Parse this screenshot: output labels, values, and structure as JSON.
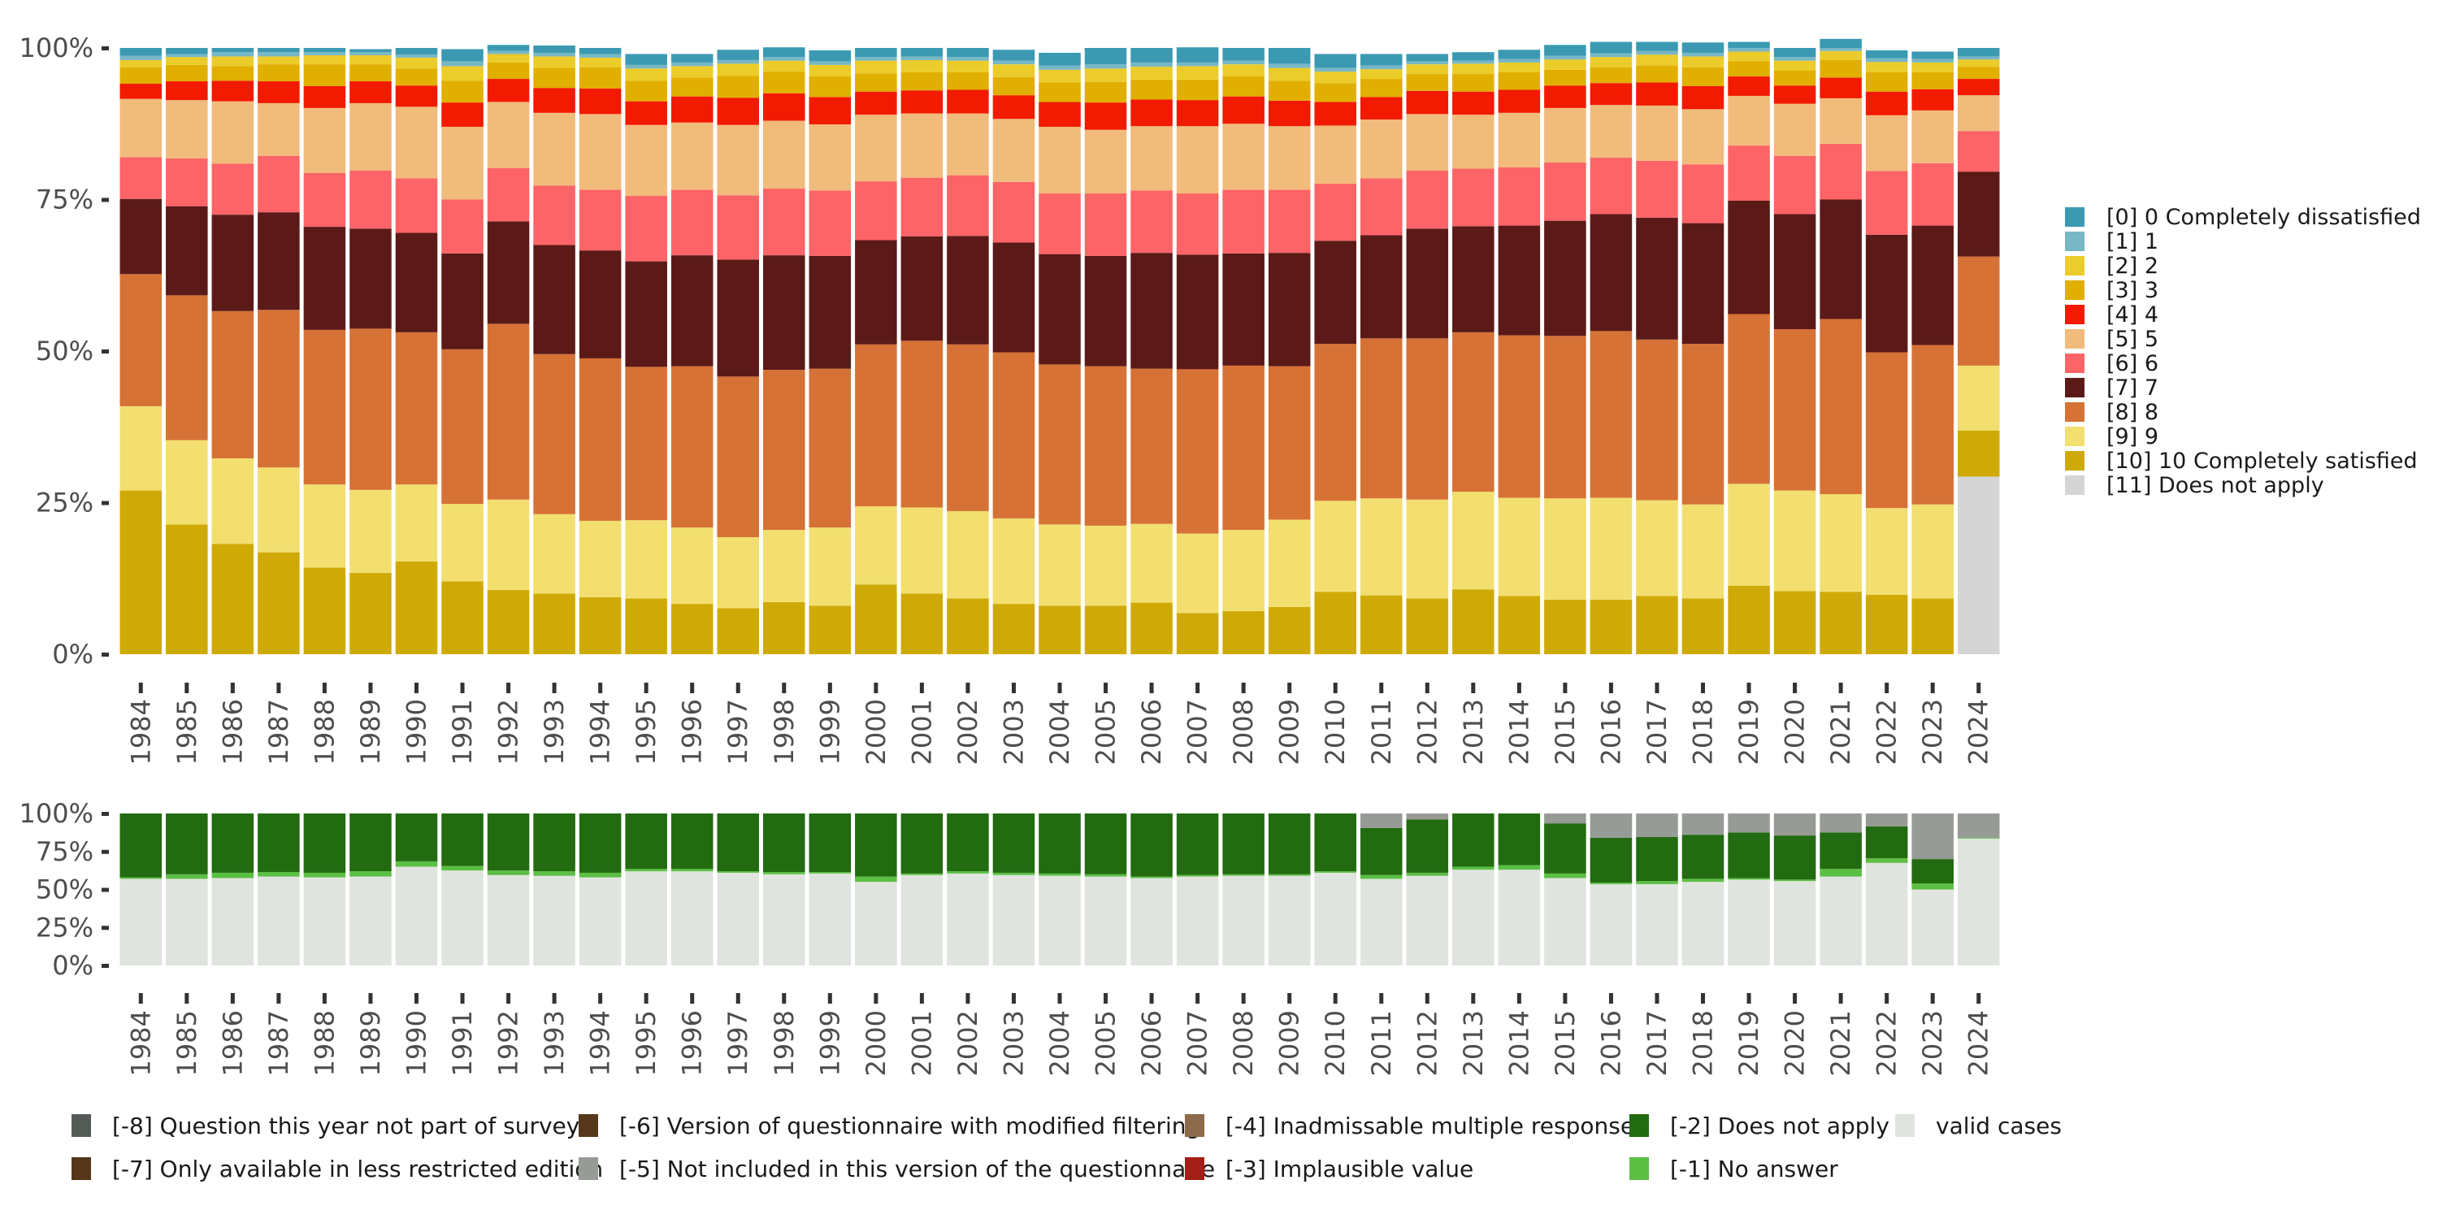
{
  "chart_data": [
    {
      "type": "bar",
      "stacked": true,
      "normalized": true,
      "title": "",
      "xlabel": "",
      "ylabel": "",
      "ylim": [
        0,
        100
      ],
      "yticks": [
        "0%",
        "25%",
        "50%",
        "75%",
        "100%"
      ],
      "ytick_values": [
        0,
        25,
        50,
        75,
        100
      ],
      "grid": false,
      "legend_position": "right",
      "categories": [
        "1984",
        "1985",
        "1986",
        "1987",
        "1988",
        "1989",
        "1990",
        "1991",
        "1992",
        "1993",
        "1994",
        "1995",
        "1996",
        "1997",
        "1998",
        "1999",
        "2000",
        "2001",
        "2002",
        "2003",
        "2004",
        "2005",
        "2006",
        "2007",
        "2008",
        "2009",
        "2010",
        "2011",
        "2012",
        "2013",
        "2014",
        "2015",
        "2016",
        "2017",
        "2018",
        "2019",
        "2020",
        "2021",
        "2022",
        "2023",
        "2024"
      ],
      "series": [
        {
          "name": "[11] Does not apply",
          "color": "#d5d5d5",
          "values": [
            0,
            0,
            0,
            0,
            0,
            0,
            0,
            0,
            0,
            0,
            0,
            0,
            0,
            0,
            0,
            0,
            0,
            0,
            0,
            0,
            0,
            0,
            0,
            0,
            0,
            0,
            0,
            0,
            0,
            0,
            0,
            0,
            0,
            0,
            0,
            0,
            0,
            0,
            0,
            0,
            29.3
          ]
        },
        {
          "name": "[10] 10 Completely satisfied",
          "color": "#cfaa07",
          "values": [
            27.0,
            21.4,
            18.2,
            16.8,
            14.3,
            13.4,
            15.3,
            12.0,
            10.6,
            10.0,
            9.4,
            9.2,
            8.3,
            7.6,
            8.6,
            8.0,
            11.5,
            10.0,
            9.2,
            8.3,
            8.0,
            8.0,
            8.5,
            6.8,
            7.1,
            7.8,
            10.3,
            9.7,
            9.2,
            10.7,
            9.6,
            9.0,
            9.0,
            9.6,
            9.2,
            11.3,
            10.4,
            10.3,
            9.8,
            9.2,
            7.6
          ]
        },
        {
          "name": "[9] 9",
          "color": "#f2df6f",
          "values": [
            13.9,
            13.9,
            14.1,
            14.0,
            13.7,
            13.7,
            12.7,
            12.8,
            14.9,
            13.1,
            12.6,
            12.9,
            12.6,
            11.7,
            11.9,
            12.9,
            12.9,
            14.2,
            14.4,
            14.1,
            13.4,
            13.2,
            13.0,
            13.1,
            13.4,
            14.4,
            15.0,
            16.0,
            16.3,
            16.1,
            16.2,
            16.7,
            16.8,
            15.8,
            15.5,
            16.8,
            16.6,
            16.1,
            14.3,
            15.5,
            10.7
          ]
        },
        {
          "name": "[8] 8",
          "color": "#d67236",
          "values": [
            21.8,
            23.9,
            24.3,
            26.0,
            25.5,
            26.6,
            25.1,
            25.5,
            29.0,
            26.4,
            26.8,
            25.3,
            26.6,
            26.5,
            26.4,
            26.2,
            26.7,
            27.5,
            27.5,
            27.4,
            26.4,
            26.3,
            25.6,
            27.1,
            27.1,
            25.3,
            25.9,
            26.4,
            26.6,
            26.3,
            26.8,
            26.8,
            27.5,
            26.5,
            26.5,
            28.0,
            26.6,
            28.9,
            25.7,
            26.3,
            18.0
          ]
        },
        {
          "name": "[7] 7",
          "color": "#5b1a18",
          "values": [
            12.4,
            14.7,
            15.9,
            16.1,
            17.0,
            16.5,
            16.4,
            15.8,
            16.9,
            18.0,
            17.8,
            17.4,
            18.3,
            19.3,
            18.9,
            18.6,
            17.2,
            17.2,
            17.9,
            18.1,
            18.2,
            18.2,
            19.1,
            18.9,
            18.5,
            18.7,
            17.0,
            17.0,
            18.1,
            17.5,
            18.1,
            19.0,
            19.3,
            20.1,
            19.9,
            18.7,
            19.0,
            19.7,
            19.4,
            19.7,
            14.0
          ]
        },
        {
          "name": "[6] 6",
          "color": "#fd6467",
          "values": [
            6.9,
            7.9,
            8.4,
            9.3,
            8.9,
            9.6,
            9.0,
            8.9,
            8.8,
            9.8,
            10.0,
            10.8,
            10.8,
            10.6,
            11.0,
            10.8,
            9.7,
            9.7,
            10.0,
            10.0,
            10.0,
            10.3,
            10.3,
            10.1,
            10.5,
            10.4,
            9.4,
            9.4,
            9.6,
            9.5,
            9.6,
            9.6,
            9.3,
            9.4,
            9.7,
            9.1,
            9.6,
            9.2,
            10.5,
            10.3,
            6.7
          ]
        },
        {
          "name": "[5] 5",
          "color": "#f1bb7b",
          "values": [
            9.6,
            9.6,
            10.3,
            8.7,
            10.7,
            11.1,
            11.8,
            12.0,
            10.9,
            12.0,
            12.5,
            11.7,
            11.1,
            11.6,
            11.2,
            10.9,
            11.0,
            10.6,
            10.2,
            10.4,
            11.0,
            10.5,
            10.6,
            11.1,
            10.9,
            10.5,
            9.6,
            9.7,
            9.3,
            8.9,
            9.0,
            9.0,
            8.7,
            9.1,
            9.1,
            8.2,
            8.6,
            7.5,
            9.2,
            8.7,
            5.9
          ]
        },
        {
          "name": "[4] 4",
          "color": "#f21a00",
          "values": [
            2.5,
            3.1,
            3.4,
            3.6,
            3.6,
            3.6,
            3.5,
            4.0,
            3.8,
            4.1,
            4.2,
            3.9,
            4.3,
            4.5,
            4.5,
            4.5,
            3.8,
            3.8,
            3.9,
            3.9,
            4.1,
            4.5,
            4.4,
            4.3,
            4.5,
            4.2,
            3.9,
            3.7,
            3.8,
            3.8,
            3.8,
            3.7,
            3.6,
            3.8,
            3.8,
            3.2,
            3.0,
            3.4,
            3.9,
            3.5,
            2.7
          ]
        },
        {
          "name": "[3] 3",
          "color": "#e1af00",
          "values": [
            2.7,
            2.7,
            2.4,
            2.8,
            3.6,
            2.8,
            2.8,
            3.6,
            2.7,
            3.3,
            3.5,
            3.4,
            3.1,
            3.6,
            3.6,
            3.4,
            3.0,
            3.0,
            2.9,
            3.0,
            3.2,
            3.4,
            3.3,
            3.4,
            3.3,
            3.3,
            3.1,
            3.0,
            2.8,
            2.9,
            2.9,
            2.6,
            2.6,
            2.8,
            3.1,
            2.5,
            2.5,
            2.9,
            3.2,
            2.8,
            2.0
          ]
        },
        {
          "name": "[2] 2",
          "color": "#ebcc2a",
          "values": [
            1.2,
            1.3,
            1.6,
            1.3,
            1.5,
            1.5,
            1.8,
            2.4,
            1.4,
            1.9,
            1.6,
            2.0,
            1.9,
            2.0,
            1.8,
            1.9,
            2.1,
            2.0,
            1.9,
            2.1,
            2.1,
            2.2,
            2.1,
            2.2,
            2.0,
            2.1,
            1.9,
            1.6,
            1.6,
            1.7,
            1.6,
            1.7,
            1.7,
            1.8,
            1.8,
            1.6,
            1.6,
            1.5,
            1.7,
            1.6,
            1.2
          ]
        },
        {
          "name": "[1] 1",
          "color": "#78b7c5",
          "values": [
            0.7,
            0.5,
            0.7,
            0.7,
            0.5,
            0.5,
            0.5,
            0.8,
            0.5,
            0.6,
            0.6,
            0.6,
            0.6,
            0.6,
            0.6,
            0.6,
            0.6,
            0.6,
            0.6,
            0.6,
            0.7,
            0.7,
            0.7,
            0.6,
            0.6,
            0.7,
            0.6,
            0.6,
            0.5,
            0.5,
            0.6,
            0.6,
            0.6,
            0.6,
            0.6,
            0.6,
            0.6,
            0.5,
            0.6,
            0.6,
            0.5
          ]
        },
        {
          "name": "[0] 0 Completely dissatisfied",
          "color": "#3b9ab2",
          "values": [
            1.3,
            1.0,
            0.7,
            0.7,
            0.7,
            0.5,
            1.1,
            2.0,
            1.0,
            1.2,
            1.0,
            1.8,
            1.4,
            1.7,
            1.6,
            1.8,
            1.5,
            1.4,
            1.5,
            1.8,
            2.1,
            2.7,
            2.4,
            2.5,
            2.1,
            2.6,
            2.3,
            1.9,
            1.2,
            1.4,
            1.5,
            1.8,
            1.9,
            1.5,
            1.7,
            1.0,
            1.5,
            1.5,
            1.3,
            1.2,
            1.4
          ]
        }
      ],
      "legend": [
        {
          "label": "[0] 0 Completely dissatisfied",
          "color": "#3b9ab2"
        },
        {
          "label": "[1] 1",
          "color": "#78b7c5"
        },
        {
          "label": "[2] 2",
          "color": "#ebcc2a"
        },
        {
          "label": "[3] 3",
          "color": "#e1af00"
        },
        {
          "label": "[4] 4",
          "color": "#f21a00"
        },
        {
          "label": "[5] 5",
          "color": "#f1bb7b"
        },
        {
          "label": "[6] 6",
          "color": "#fd6467"
        },
        {
          "label": "[7] 7",
          "color": "#5b1a18"
        },
        {
          "label": "[8] 8",
          "color": "#d67236"
        },
        {
          "label": "[9] 9",
          "color": "#f2df6f"
        },
        {
          "label": "[10] 10 Completely satisfied",
          "color": "#cfaa07"
        },
        {
          "label": "[11] Does not apply",
          "color": "#d5d5d5"
        }
      ]
    },
    {
      "type": "bar",
      "stacked": true,
      "normalized": true,
      "title": "",
      "xlabel": "",
      "ylabel": "",
      "ylim": [
        0,
        100
      ],
      "yticks": [
        "0%",
        "25%",
        "50%",
        "75%",
        "100%"
      ],
      "ytick_values": [
        0,
        25,
        50,
        75,
        100
      ],
      "grid": false,
      "legend_position": "bottom",
      "categories": [
        "1984",
        "1985",
        "1986",
        "1987",
        "1988",
        "1989",
        "1990",
        "1991",
        "1992",
        "1993",
        "1994",
        "1995",
        "1996",
        "1997",
        "1998",
        "1999",
        "2000",
        "2001",
        "2002",
        "2003",
        "2004",
        "2005",
        "2006",
        "2007",
        "2008",
        "2009",
        "2010",
        "2011",
        "2012",
        "2013",
        "2014",
        "2015",
        "2016",
        "2017",
        "2018",
        "2019",
        "2020",
        "2021",
        "2022",
        "2023",
        "2024"
      ],
      "series": [
        {
          "name": "valid cases",
          "color": "#e0e4df",
          "values": [
            57,
            57,
            57.5,
            58.5,
            58,
            58.5,
            65,
            62.5,
            59.5,
            59,
            58,
            62,
            62,
            61,
            60,
            60.5,
            55,
            59.5,
            60.5,
            59.5,
            59,
            58.5,
            57.5,
            58.5,
            59,
            59,
            61,
            57,
            59,
            63,
            63,
            57.5,
            53.5,
            53.5,
            55,
            56.5,
            55.5,
            58.5,
            67.5,
            50,
            83.5
          ]
        },
        {
          "name": "[-1] No answer",
          "color": "#5bbf43",
          "values": [
            1,
            3,
            3.5,
            3,
            3,
            3.5,
            3.5,
            3,
            3,
            3,
            3,
            1.5,
            1.5,
            1,
            1.5,
            1,
            3.5,
            1,
            1.5,
            1.5,
            1.5,
            1.5,
            1,
            1,
            1,
            1,
            1,
            2.5,
            2,
            2,
            3,
            3,
            1,
            2,
            2,
            1,
            1,
            5,
            3,
            4,
            0.5
          ]
        },
        {
          "name": "[-2] Does not apply",
          "color": "#226b10",
          "values": [
            42,
            40,
            39,
            38.5,
            39,
            38,
            31.5,
            34.5,
            37.5,
            38,
            39,
            36.5,
            36.5,
            38,
            38.5,
            38.5,
            41.5,
            39.5,
            38,
            39,
            39.5,
            40,
            41.5,
            40.5,
            40,
            40,
            38,
            31,
            35,
            35,
            34,
            33,
            29.5,
            29,
            29,
            30,
            29,
            24,
            21,
            16,
            0
          ]
        },
        {
          "name": "[-5] Not included in this version of the questionnaire",
          "color": "#979b96",
          "values": [
            0,
            0,
            0,
            0,
            0,
            0,
            0,
            0,
            0,
            0,
            0,
            0,
            0,
            0,
            0,
            0,
            0,
            0,
            0,
            0,
            0,
            0,
            0,
            0,
            0,
            0,
            0,
            9.5,
            4,
            0,
            0,
            6.5,
            16,
            15.5,
            14,
            12.5,
            14.5,
            12.5,
            8.5,
            30,
            16
          ]
        }
      ],
      "legend": [
        {
          "label": "[-8] Question this year not part of survey",
          "color": "#545b56"
        },
        {
          "label": "[-7] Only available in less restricted edition",
          "color": "#55361a"
        },
        {
          "label": "[-6] Version of questionnaire with modified filtering",
          "color": "#56381a"
        },
        {
          "label": "[-5] Not included in this version of the questionnaire",
          "color": "#979b96"
        },
        {
          "label": "[-4] Inadmissable multiple response",
          "color": "#8d6a4a"
        },
        {
          "label": "[-3] Implausible value",
          "color": "#a51d17"
        },
        {
          "label": "[-2] Does not apply",
          "color": "#226b10"
        },
        {
          "label": "[-1] No answer",
          "color": "#5bbf43"
        },
        {
          "label": "valid cases",
          "color": "#e0e4df"
        }
      ]
    }
  ]
}
